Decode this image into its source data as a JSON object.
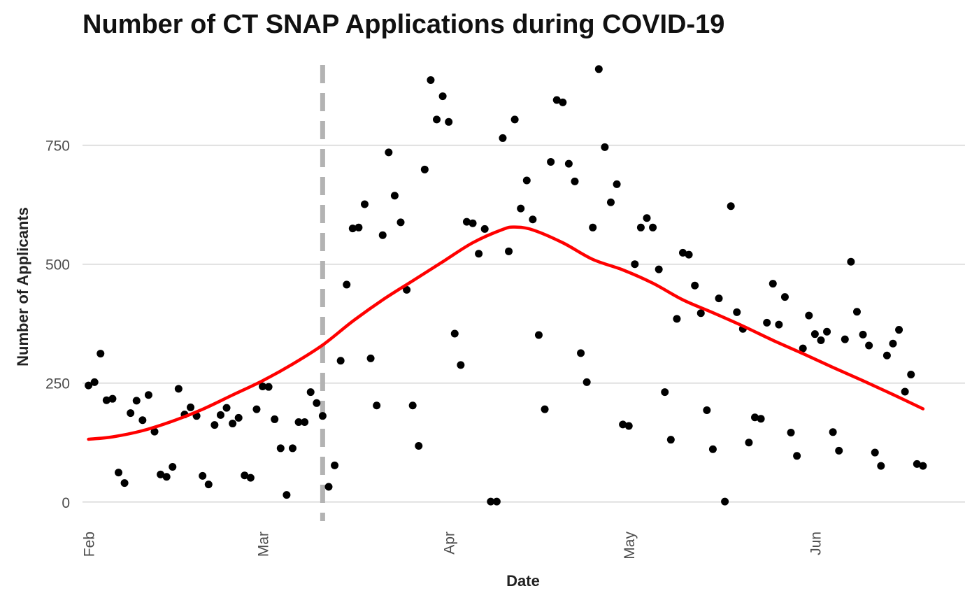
{
  "chart_data": {
    "type": "scatter",
    "title": "Number of CT SNAP Applications during COVID-19",
    "xlabel": "Date",
    "ylabel": "Number of Applicants",
    "x_range": [
      "2020-01-31",
      "2020-06-26"
    ],
    "ylim": [
      -40,
      920
    ],
    "x_ticks": [
      {
        "date": "2020-02-01",
        "label": "Feb"
      },
      {
        "date": "2020-03-01",
        "label": "Mar"
      },
      {
        "date": "2020-04-01",
        "label": "Apr"
      },
      {
        "date": "2020-05-01",
        "label": "May"
      },
      {
        "date": "2020-06-01",
        "label": "Jun"
      }
    ],
    "y_ticks": [
      0,
      250,
      500,
      750
    ],
    "grid": "horizontal major lines only",
    "vline": {
      "date": "2020-03-11",
      "style": "dashed",
      "color": "#b3b3b3"
    },
    "smooth_color": "#ff0000",
    "point_color": "#000000",
    "points": [
      [
        "2020-02-01",
        245
      ],
      [
        "2020-02-02",
        252
      ],
      [
        "2020-02-03",
        312
      ],
      [
        "2020-02-04",
        214
      ],
      [
        "2020-02-05",
        217
      ],
      [
        "2020-02-06",
        62
      ],
      [
        "2020-02-07",
        40
      ],
      [
        "2020-02-08",
        187
      ],
      [
        "2020-02-09",
        213
      ],
      [
        "2020-02-10",
        172
      ],
      [
        "2020-02-11",
        225
      ],
      [
        "2020-02-12",
        148
      ],
      [
        "2020-02-13",
        58
      ],
      [
        "2020-02-14",
        53
      ],
      [
        "2020-02-15",
        74
      ],
      [
        "2020-02-16",
        238
      ],
      [
        "2020-02-17",
        184
      ],
      [
        "2020-02-18",
        199
      ],
      [
        "2020-02-19",
        181
      ],
      [
        "2020-02-20",
        55
      ],
      [
        "2020-02-21",
        37
      ],
      [
        "2020-02-22",
        162
      ],
      [
        "2020-02-23",
        183
      ],
      [
        "2020-02-24",
        198
      ],
      [
        "2020-02-25",
        165
      ],
      [
        "2020-02-26",
        177
      ],
      [
        "2020-02-27",
        56
      ],
      [
        "2020-02-28",
        51
      ],
      [
        "2020-02-29",
        195
      ],
      [
        "2020-03-01",
        243
      ],
      [
        "2020-03-02",
        242
      ],
      [
        "2020-03-03",
        174
      ],
      [
        "2020-03-04",
        113
      ],
      [
        "2020-03-05",
        15
      ],
      [
        "2020-03-06",
        113
      ],
      [
        "2020-03-07",
        168
      ],
      [
        "2020-03-08",
        168
      ],
      [
        "2020-03-09",
        231
      ],
      [
        "2020-03-10",
        208
      ],
      [
        "2020-03-11",
        181
      ],
      [
        "2020-03-12",
        32
      ],
      [
        "2020-03-13",
        77
      ],
      [
        "2020-03-14",
        297
      ],
      [
        "2020-03-15",
        457
      ],
      [
        "2020-03-16",
        575
      ],
      [
        "2020-03-17",
        577
      ],
      [
        "2020-03-18",
        626
      ],
      [
        "2020-03-19",
        302
      ],
      [
        "2020-03-20",
        203
      ],
      [
        "2020-03-21",
        561
      ],
      [
        "2020-03-22",
        735
      ],
      [
        "2020-03-23",
        644
      ],
      [
        "2020-03-24",
        588
      ],
      [
        "2020-03-25",
        446
      ],
      [
        "2020-03-26",
        203
      ],
      [
        "2020-03-27",
        118
      ],
      [
        "2020-03-28",
        699
      ],
      [
        "2020-03-29",
        887
      ],
      [
        "2020-03-30",
        804
      ],
      [
        "2020-03-31",
        853
      ],
      [
        "2020-04-01",
        799
      ],
      [
        "2020-04-02",
        354
      ],
      [
        "2020-04-03",
        288
      ],
      [
        "2020-04-04",
        589
      ],
      [
        "2020-04-05",
        586
      ],
      [
        "2020-04-06",
        522
      ],
      [
        "2020-04-07",
        574
      ],
      [
        "2020-04-08",
        1
      ],
      [
        "2020-04-09",
        1
      ],
      [
        "2020-04-10",
        765
      ],
      [
        "2020-04-11",
        527
      ],
      [
        "2020-04-12",
        804
      ],
      [
        "2020-04-13",
        617
      ],
      [
        "2020-04-14",
        676
      ],
      [
        "2020-04-15",
        594
      ],
      [
        "2020-04-16",
        351
      ],
      [
        "2020-04-17",
        195
      ],
      [
        "2020-04-18",
        715
      ],
      [
        "2020-04-19",
        845
      ],
      [
        "2020-04-20",
        840
      ],
      [
        "2020-04-21",
        711
      ],
      [
        "2020-04-22",
        674
      ],
      [
        "2020-04-23",
        313
      ],
      [
        "2020-04-24",
        252
      ],
      [
        "2020-04-25",
        577
      ],
      [
        "2020-04-26",
        910
      ],
      [
        "2020-04-27",
        746
      ],
      [
        "2020-04-28",
        630
      ],
      [
        "2020-04-29",
        668
      ],
      [
        "2020-04-30",
        163
      ],
      [
        "2020-05-01",
        160
      ],
      [
        "2020-05-02",
        500
      ],
      [
        "2020-05-03",
        577
      ],
      [
        "2020-05-04",
        597
      ],
      [
        "2020-05-05",
        577
      ],
      [
        "2020-05-06",
        489
      ],
      [
        "2020-05-07",
        231
      ],
      [
        "2020-05-08",
        131
      ],
      [
        "2020-05-09",
        385
      ],
      [
        "2020-05-10",
        524
      ],
      [
        "2020-05-11",
        520
      ],
      [
        "2020-05-12",
        455
      ],
      [
        "2020-05-13",
        397
      ],
      [
        "2020-05-14",
        193
      ],
      [
        "2020-05-15",
        111
      ],
      [
        "2020-05-16",
        428
      ],
      [
        "2020-05-17",
        1
      ],
      [
        "2020-05-18",
        622
      ],
      [
        "2020-05-19",
        399
      ],
      [
        "2020-05-20",
        364
      ],
      [
        "2020-05-21",
        125
      ],
      [
        "2020-05-22",
        178
      ],
      [
        "2020-05-23",
        175
      ],
      [
        "2020-05-24",
        377
      ],
      [
        "2020-05-25",
        459
      ],
      [
        "2020-05-26",
        373
      ],
      [
        "2020-05-27",
        431
      ],
      [
        "2020-05-28",
        146
      ],
      [
        "2020-05-29",
        97
      ],
      [
        "2020-05-30",
        323
      ],
      [
        "2020-05-31",
        392
      ],
      [
        "2020-06-01",
        353
      ],
      [
        "2020-06-02",
        340
      ],
      [
        "2020-06-03",
        358
      ],
      [
        "2020-06-04",
        147
      ],
      [
        "2020-06-05",
        108
      ],
      [
        "2020-06-06",
        342
      ],
      [
        "2020-06-07",
        505
      ],
      [
        "2020-06-08",
        400
      ],
      [
        "2020-06-09",
        352
      ],
      [
        "2020-06-10",
        329
      ],
      [
        "2020-06-11",
        104
      ],
      [
        "2020-06-12",
        76
      ],
      [
        "2020-06-13",
        308
      ],
      [
        "2020-06-14",
        333
      ],
      [
        "2020-06-15",
        362
      ],
      [
        "2020-06-16",
        232
      ],
      [
        "2020-06-17",
        268
      ],
      [
        "2020-06-18",
        80
      ],
      [
        "2020-06-19",
        76
      ]
    ],
    "smooth": [
      [
        "2020-02-01",
        132
      ],
      [
        "2020-02-05",
        137
      ],
      [
        "2020-02-10",
        150
      ],
      [
        "2020-02-15",
        170
      ],
      [
        "2020-02-20",
        195
      ],
      [
        "2020-02-25",
        225
      ],
      [
        "2020-03-01",
        255
      ],
      [
        "2020-03-06",
        290
      ],
      [
        "2020-03-11",
        330
      ],
      [
        "2020-03-16",
        380
      ],
      [
        "2020-03-21",
        425
      ],
      [
        "2020-03-26",
        465
      ],
      [
        "2020-03-31",
        505
      ],
      [
        "2020-04-05",
        545
      ],
      [
        "2020-04-10",
        573
      ],
      [
        "2020-04-12",
        578
      ],
      [
        "2020-04-15",
        572
      ],
      [
        "2020-04-20",
        545
      ],
      [
        "2020-04-25",
        510
      ],
      [
        "2020-04-30",
        488
      ],
      [
        "2020-05-05",
        460
      ],
      [
        "2020-05-10",
        425
      ],
      [
        "2020-05-15",
        398
      ],
      [
        "2020-05-20",
        370
      ],
      [
        "2020-05-25",
        340
      ],
      [
        "2020-05-30",
        312
      ],
      [
        "2020-06-04",
        283
      ],
      [
        "2020-06-09",
        255
      ],
      [
        "2020-06-14",
        226
      ],
      [
        "2020-06-19",
        196
      ]
    ]
  }
}
